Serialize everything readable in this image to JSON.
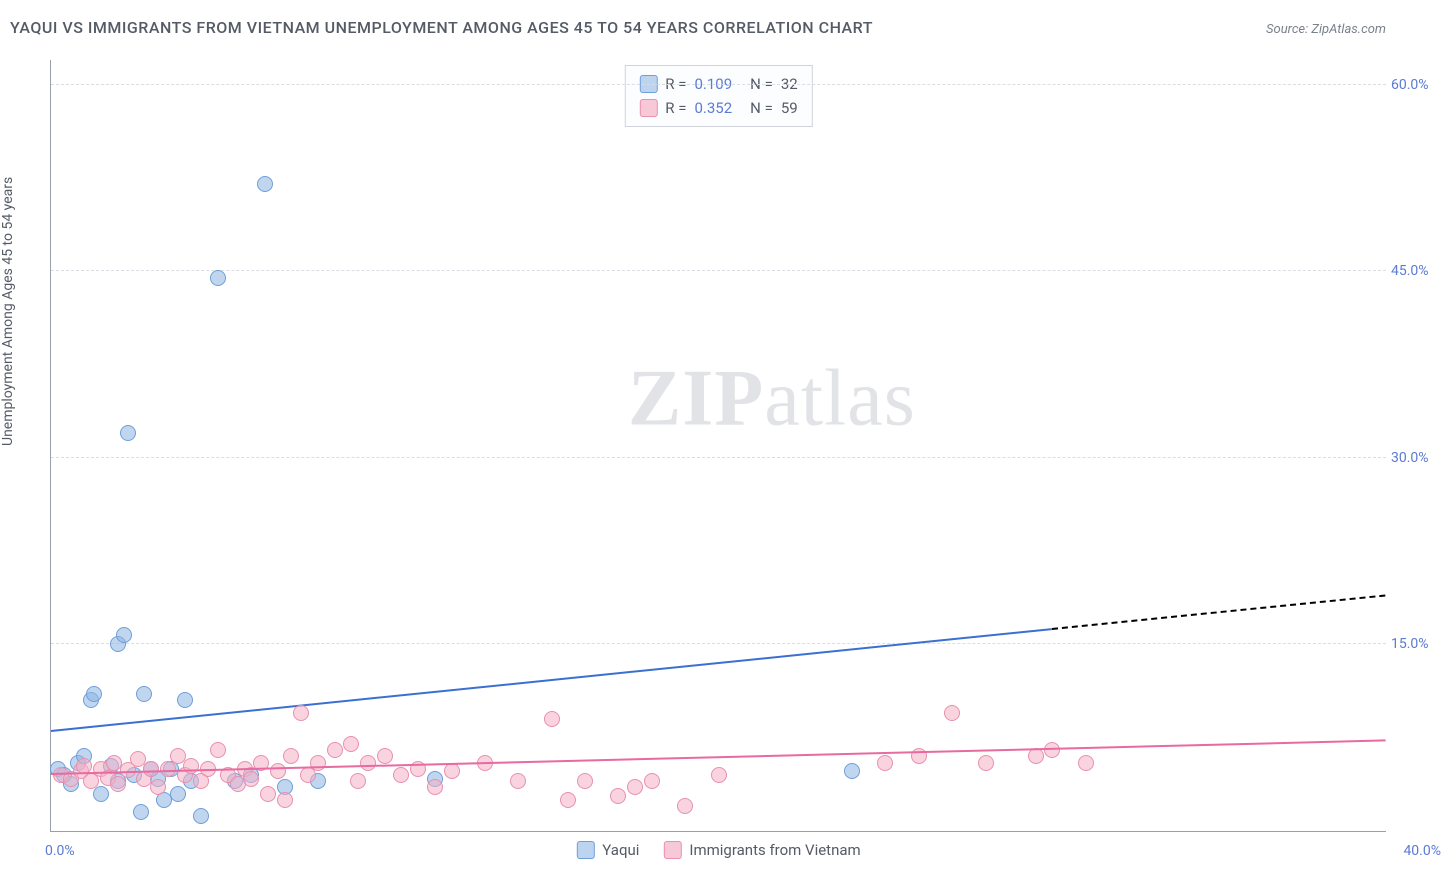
{
  "title": "YAQUI VS IMMIGRANTS FROM VIETNAM UNEMPLOYMENT AMONG AGES 45 TO 54 YEARS CORRELATION CHART",
  "source": "Source: ZipAtlas.com",
  "watermark": {
    "bold": "ZIP",
    "rest": "atlas"
  },
  "chart": {
    "type": "scatter",
    "ylabel": "Unemployment Among Ages 45 to 54 years",
    "xlim": [
      0,
      40
    ],
    "ylim": [
      0,
      62
    ],
    "x_ticks": [
      {
        "v": 0,
        "label": "0.0%"
      },
      {
        "v": 40,
        "label": "40.0%"
      }
    ],
    "y_ticks": [
      {
        "v": 15,
        "label": "15.0%"
      },
      {
        "v": 30,
        "label": "30.0%"
      },
      {
        "v": 45,
        "label": "45.0%"
      },
      {
        "v": 60,
        "label": "60.0%"
      }
    ],
    "grid_color": "#d9dde4",
    "axis_color": "#98a0ae",
    "tick_label_color": "#5b7bd5",
    "background_color": "#ffffff",
    "point_radius": 8,
    "legend_stats": {
      "rows": [
        {
          "swatch_fill": "#bcd4f0",
          "swatch_border": "#6f9edb",
          "R": "0.109",
          "N": "32"
        },
        {
          "swatch_fill": "#f7c9d6",
          "swatch_border": "#e98fb0",
          "R": "0.352",
          "N": "59"
        }
      ]
    },
    "series_legend": [
      {
        "label": "Yaqui",
        "fill": "#bcd4f0",
        "border": "#6f9edb"
      },
      {
        "label": "Immigrants from Vietnam",
        "fill": "#f7c9d6",
        "border": "#e98fb0"
      }
    ],
    "series": [
      {
        "name": "Yaqui",
        "fill": "rgba(141,180,226,0.55)",
        "border": "#6f9edb",
        "trend_color": "#3b6fd0",
        "trend": {
          "x0": 0,
          "y0": 8.0,
          "x_solid_end": 30,
          "y_solid_end": 16.2,
          "x1": 40,
          "y1": 18.9
        },
        "points": [
          [
            0.2,
            5.0
          ],
          [
            0.4,
            4.5
          ],
          [
            0.6,
            3.8
          ],
          [
            0.8,
            5.5
          ],
          [
            1.0,
            6.0
          ],
          [
            1.2,
            10.5
          ],
          [
            1.3,
            11.0
          ],
          [
            1.5,
            3.0
          ],
          [
            1.8,
            5.2
          ],
          [
            2.0,
            4.0
          ],
          [
            2.0,
            15.0
          ],
          [
            2.2,
            15.8
          ],
          [
            2.3,
            32.0
          ],
          [
            2.5,
            4.5
          ],
          [
            2.7,
            1.5
          ],
          [
            2.8,
            11.0
          ],
          [
            3.0,
            5.0
          ],
          [
            3.2,
            4.2
          ],
          [
            3.4,
            2.5
          ],
          [
            3.6,
            5.0
          ],
          [
            3.8,
            3.0
          ],
          [
            4.0,
            10.5
          ],
          [
            4.2,
            4.0
          ],
          [
            4.5,
            1.2
          ],
          [
            5.0,
            44.5
          ],
          [
            5.5,
            4.0
          ],
          [
            6.0,
            4.5
          ],
          [
            6.4,
            52.0
          ],
          [
            7.0,
            3.5
          ],
          [
            8.0,
            4.0
          ],
          [
            11.5,
            4.2
          ],
          [
            24.0,
            4.8
          ]
        ]
      },
      {
        "name": "Immigrants from Vietnam",
        "fill": "rgba(244,176,196,0.55)",
        "border": "#e98fb0",
        "trend_color": "#e76aa0",
        "trend": {
          "x0": 0,
          "y0": 4.5,
          "x_solid_end": 40,
          "y_solid_end": 7.2,
          "x1": 40,
          "y1": 7.2
        },
        "points": [
          [
            0.3,
            4.5
          ],
          [
            0.6,
            4.2
          ],
          [
            0.9,
            4.8
          ],
          [
            1.0,
            5.2
          ],
          [
            1.2,
            4.0
          ],
          [
            1.5,
            5.0
          ],
          [
            1.7,
            4.3
          ],
          [
            1.9,
            5.5
          ],
          [
            2.0,
            3.8
          ],
          [
            2.3,
            4.9
          ],
          [
            2.6,
            5.8
          ],
          [
            2.8,
            4.2
          ],
          [
            3.0,
            5.0
          ],
          [
            3.2,
            3.5
          ],
          [
            3.5,
            5.0
          ],
          [
            3.8,
            6.0
          ],
          [
            4.0,
            4.5
          ],
          [
            4.2,
            5.2
          ],
          [
            4.5,
            4.0
          ],
          [
            4.7,
            5.0
          ],
          [
            5.0,
            6.5
          ],
          [
            5.3,
            4.5
          ],
          [
            5.6,
            3.8
          ],
          [
            5.8,
            5.0
          ],
          [
            6.0,
            4.2
          ],
          [
            6.3,
            5.5
          ],
          [
            6.5,
            3.0
          ],
          [
            6.8,
            4.8
          ],
          [
            7.0,
            2.5
          ],
          [
            7.2,
            6.0
          ],
          [
            7.5,
            9.5
          ],
          [
            7.7,
            4.5
          ],
          [
            8.0,
            5.5
          ],
          [
            8.5,
            6.5
          ],
          [
            9.0,
            7.0
          ],
          [
            9.2,
            4.0
          ],
          [
            9.5,
            5.5
          ],
          [
            10.0,
            6.0
          ],
          [
            10.5,
            4.5
          ],
          [
            11.0,
            5.0
          ],
          [
            11.5,
            3.5
          ],
          [
            12.0,
            4.8
          ],
          [
            13.0,
            5.5
          ],
          [
            14.0,
            4.0
          ],
          [
            15.0,
            9.0
          ],
          [
            15.5,
            2.5
          ],
          [
            16.0,
            4.0
          ],
          [
            17.0,
            2.8
          ],
          [
            17.5,
            3.5
          ],
          [
            18.0,
            4.0
          ],
          [
            19.0,
            2.0
          ],
          [
            20.0,
            4.5
          ],
          [
            25.0,
            5.5
          ],
          [
            26.0,
            6.0
          ],
          [
            27.0,
            9.5
          ],
          [
            28.0,
            5.5
          ],
          [
            29.5,
            6.0
          ],
          [
            30.0,
            6.5
          ],
          [
            31.0,
            5.5
          ]
        ]
      }
    ]
  }
}
